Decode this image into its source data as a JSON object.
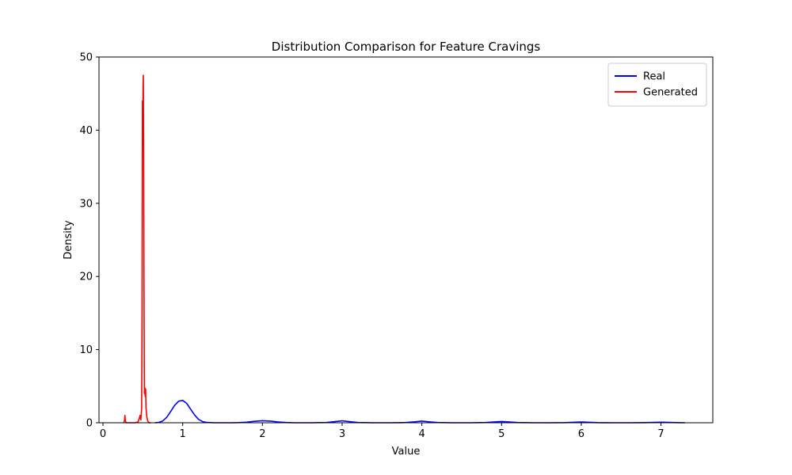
{
  "chart_data": {
    "type": "line",
    "title": "Distribution Comparison for Feature Cravings",
    "xlabel": "Value",
    "ylabel": "Density",
    "xlim": [
      -0.05,
      7.65
    ],
    "ylim": [
      0,
      50
    ],
    "xticks": [
      0,
      1,
      2,
      3,
      4,
      5,
      6,
      7
    ],
    "yticks": [
      0,
      10,
      20,
      30,
      40,
      50
    ],
    "grid": false,
    "legend_position": "top-right",
    "series": [
      {
        "name": "Real",
        "color": "#0000ff",
        "x": [
          0.65,
          0.7,
          0.75,
          0.8,
          0.85,
          0.9,
          0.95,
          1.0,
          1.05,
          1.1,
          1.15,
          1.2,
          1.25,
          1.3,
          1.4,
          1.5,
          1.6,
          1.7,
          1.8,
          1.9,
          2.0,
          2.1,
          2.2,
          2.3,
          2.4,
          2.6,
          2.8,
          2.9,
          3.0,
          3.1,
          3.2,
          3.4,
          3.6,
          3.8,
          3.9,
          4.0,
          4.1,
          4.2,
          4.4,
          4.6,
          4.8,
          4.9,
          5.0,
          5.1,
          5.2,
          5.4,
          5.6,
          5.8,
          5.9,
          6.0,
          6.1,
          6.2,
          6.4,
          6.6,
          6.8,
          6.9,
          7.0,
          7.1,
          7.2,
          7.3
        ],
        "y": [
          0.0,
          0.05,
          0.25,
          0.75,
          1.55,
          2.4,
          2.95,
          3.05,
          2.65,
          1.85,
          1.05,
          0.45,
          0.15,
          0.05,
          0.0,
          0.0,
          0.0,
          0.02,
          0.08,
          0.2,
          0.28,
          0.22,
          0.1,
          0.03,
          0.0,
          0.0,
          0.03,
          0.14,
          0.26,
          0.14,
          0.03,
          0.0,
          0.0,
          0.03,
          0.12,
          0.22,
          0.12,
          0.03,
          0.0,
          0.0,
          0.03,
          0.1,
          0.17,
          0.1,
          0.03,
          0.0,
          0.0,
          0.02,
          0.06,
          0.1,
          0.06,
          0.02,
          0.0,
          0.0,
          0.02,
          0.05,
          0.08,
          0.05,
          0.02,
          0.0
        ]
      },
      {
        "name": "Generated",
        "color": "#ff0000",
        "x": [
          0.26,
          0.27,
          0.275,
          0.28,
          0.29,
          0.3,
          0.35,
          0.4,
          0.44,
          0.455,
          0.465,
          0.475,
          0.485,
          0.49,
          0.495,
          0.5,
          0.503,
          0.506,
          0.51,
          0.514,
          0.518,
          0.52,
          0.525,
          0.53,
          0.535,
          0.54,
          0.55,
          0.56,
          0.57,
          0.58,
          0.6
        ],
        "y": [
          0.0,
          0.3,
          1.0,
          0.3,
          0.0,
          0.0,
          0.0,
          0.0,
          0.1,
          0.6,
          1.0,
          0.4,
          2.0,
          15.0,
          44.0,
          40.0,
          46.0,
          47.5,
          38.0,
          20.0,
          8.0,
          4.0,
          4.8,
          3.6,
          4.6,
          2.0,
          0.8,
          0.3,
          0.1,
          0.0,
          0.0
        ]
      }
    ]
  }
}
